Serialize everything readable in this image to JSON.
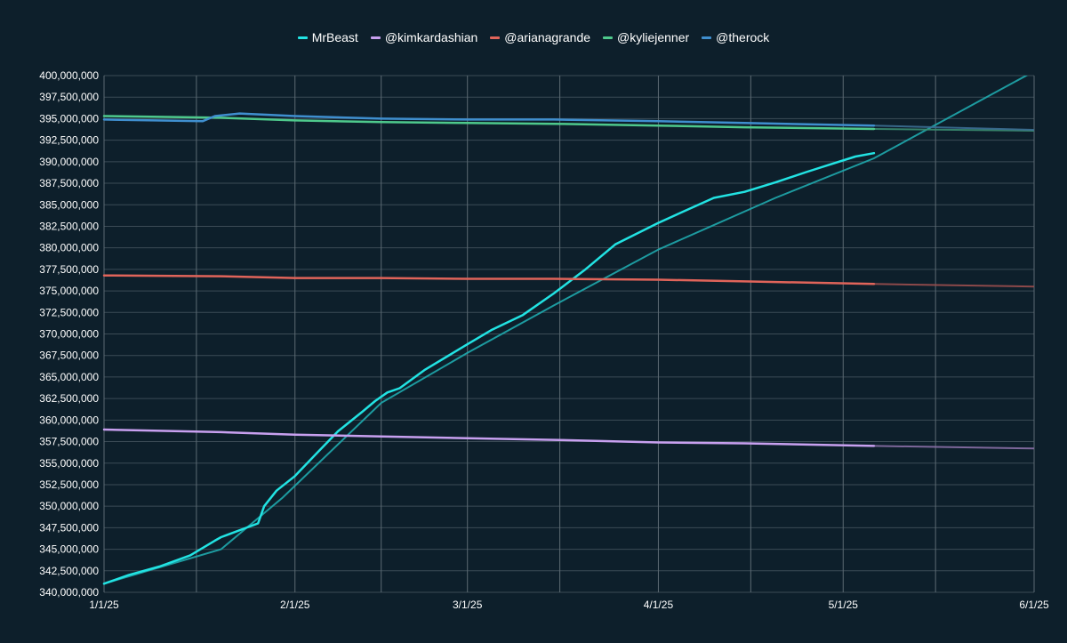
{
  "chart_data": {
    "type": "line",
    "title": "",
    "xlabel": "",
    "ylabel": "",
    "ylim": [
      340000000,
      400000000
    ],
    "xlim": [
      "2025-01-01",
      "2025-06-01"
    ],
    "grid": true,
    "legend_position": "top",
    "x_ticks": [
      "1/1/25",
      "2/1/25",
      "3/1/25",
      "4/1/25",
      "5/1/25",
      "6/1/25"
    ],
    "y_ticks": [
      "340,000,000",
      "342,500,000",
      "345,000,000",
      "347,500,000",
      "350,000,000",
      "352,500,000",
      "355,000,000",
      "357,500,000",
      "360,000,000",
      "362,500,000",
      "365,000,000",
      "367,500,000",
      "370,000,000",
      "372,500,000",
      "375,000,000",
      "377,500,000",
      "380,000,000",
      "382,500,000",
      "385,000,000",
      "387,500,000",
      "390,000,000",
      "392,500,000",
      "395,000,000",
      "397,500,000",
      "400,000,000"
    ],
    "series": [
      {
        "name": "MrBeast",
        "color": "#22e3e3",
        "x": [
          "2025-01-01",
          "2025-01-05",
          "2025-01-10",
          "2025-01-15",
          "2025-01-19",
          "2025-01-20",
          "2025-01-26",
          "2025-01-27",
          "2025-01-29",
          "2025-02-01",
          "2025-02-05",
          "2025-02-08",
          "2025-02-12",
          "2025-02-14",
          "2025-02-16",
          "2025-02-18",
          "2025-02-22",
          "2025-03-01",
          "2025-03-05",
          "2025-03-10",
          "2025-03-15",
          "2025-03-20",
          "2025-03-25",
          "2025-04-01",
          "2025-04-05",
          "2025-04-10",
          "2025-04-15",
          "2025-04-20",
          "2025-04-25",
          "2025-04-29",
          "2025-05-03",
          "2025-05-06"
        ],
        "values": [
          341000000,
          342000000,
          343000000,
          344300000,
          346000000,
          346400000,
          348000000,
          350000000,
          351800000,
          353500000,
          356500000,
          358700000,
          361000000,
          362200000,
          363200000,
          363700000,
          365800000,
          368800000,
          370500000,
          372200000,
          374700000,
          377400000,
          380400000,
          382900000,
          384200000,
          385800000,
          386500000,
          387600000,
          388800000,
          389700000,
          390600000,
          391000000
        ]
      },
      {
        "name": "@kimkardashian",
        "color": "#c8a0f0",
        "x": [
          "2025-01-01",
          "2025-01-20",
          "2025-02-01",
          "2025-02-15",
          "2025-03-01",
          "2025-03-15",
          "2025-04-01",
          "2025-04-15",
          "2025-05-06"
        ],
        "values": [
          358900000,
          358600000,
          358300000,
          358100000,
          357900000,
          357700000,
          357400000,
          357300000,
          357000000
        ]
      },
      {
        "name": "@arianagrande",
        "color": "#e0645a",
        "x": [
          "2025-01-01",
          "2025-01-20",
          "2025-02-01",
          "2025-02-15",
          "2025-03-01",
          "2025-03-15",
          "2025-04-01",
          "2025-04-15",
          "2025-05-06"
        ],
        "values": [
          376800000,
          376700000,
          376500000,
          376500000,
          376400000,
          376400000,
          376300000,
          376100000,
          375800000
        ]
      },
      {
        "name": "@kyliejenner",
        "color": "#4ec98c",
        "x": [
          "2025-01-01",
          "2025-01-20",
          "2025-02-01",
          "2025-02-15",
          "2025-03-01",
          "2025-03-15",
          "2025-04-01",
          "2025-04-15",
          "2025-05-06"
        ],
        "values": [
          395300000,
          395100000,
          394800000,
          394600000,
          394500000,
          394400000,
          394200000,
          394000000,
          393800000
        ]
      },
      {
        "name": "@therock",
        "color": "#3f8fcf",
        "x": [
          "2025-01-01",
          "2025-01-17",
          "2025-01-19",
          "2025-01-23",
          "2025-02-01",
          "2025-02-15",
          "2025-03-01",
          "2025-03-15",
          "2025-04-01",
          "2025-04-15",
          "2025-05-06"
        ],
        "values": [
          394900000,
          394700000,
          395300000,
          395600000,
          395300000,
          395000000,
          394900000,
          394900000,
          394700000,
          394500000,
          394200000
        ]
      }
    ],
    "projections": [
      {
        "series": "MrBeast",
        "color": "#1fa9ad",
        "x": [
          "2025-01-01",
          "2025-01-20",
          "2025-01-30",
          "2025-02-15",
          "2025-03-01",
          "2025-03-15",
          "2025-04-01",
          "2025-04-20",
          "2025-05-06",
          "2025-06-01"
        ],
        "values": [
          341000000,
          345000000,
          351000000,
          362000000,
          367800000,
          373300000,
          379800000,
          385800000,
          390400000,
          400500000
        ]
      },
      {
        "series": "@kimkardashian",
        "color": "#8a6fa6",
        "x": [
          "2025-05-06",
          "2025-06-01"
        ],
        "values": [
          357000000,
          356700000
        ]
      },
      {
        "series": "@arianagrande",
        "color": "#9a4e4e",
        "x": [
          "2025-05-06",
          "2025-06-01"
        ],
        "values": [
          375800000,
          375500000
        ]
      },
      {
        "series": "@kyliejenner",
        "color": "#3a8c70",
        "x": [
          "2025-05-06",
          "2025-06-01"
        ],
        "values": [
          393800000,
          393600000
        ]
      },
      {
        "series": "@therock",
        "color": "#3c6f94",
        "x": [
          "2025-05-06",
          "2025-06-01"
        ],
        "values": [
          394200000,
          393700000
        ]
      }
    ]
  }
}
